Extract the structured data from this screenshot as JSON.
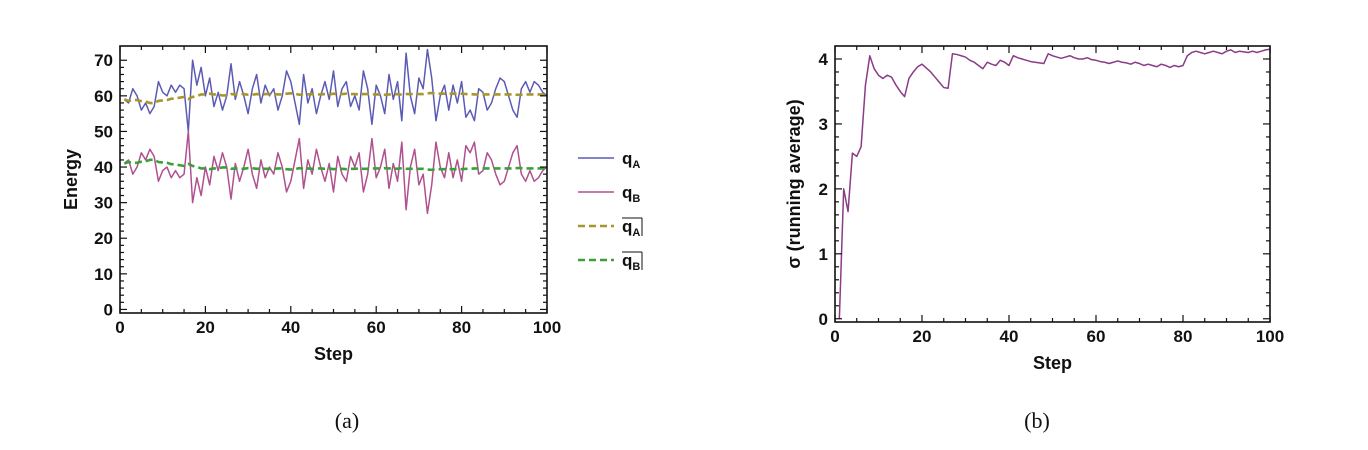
{
  "captions": [
    "(a)",
    "(b)"
  ],
  "chart_data": [
    {
      "type": "line",
      "title": "",
      "xlabel": "Step",
      "ylabel": "Energy",
      "xlim": [
        0,
        100
      ],
      "ylim": [
        -1,
        74
      ],
      "xticks": [
        "0",
        "20",
        "40",
        "60",
        "80",
        "100"
      ],
      "yticks": [
        "0",
        "10",
        "20",
        "30",
        "40",
        "50",
        "60",
        "70"
      ],
      "x": [
        1,
        2,
        3,
        4,
        5,
        6,
        7,
        8,
        9,
        10,
        11,
        12,
        13,
        14,
        15,
        16,
        17,
        18,
        19,
        20,
        21,
        22,
        23,
        24,
        25,
        26,
        27,
        28,
        29,
        30,
        31,
        32,
        33,
        34,
        35,
        36,
        37,
        38,
        39,
        40,
        41,
        42,
        43,
        44,
        45,
        46,
        47,
        48,
        49,
        50,
        51,
        52,
        53,
        54,
        55,
        56,
        57,
        58,
        59,
        60,
        61,
        62,
        63,
        64,
        65,
        66,
        67,
        68,
        69,
        70,
        71,
        72,
        73,
        74,
        75,
        76,
        77,
        78,
        79,
        80,
        81,
        82,
        83,
        84,
        85,
        86,
        87,
        88,
        89,
        90,
        91,
        92,
        93,
        94,
        95,
        96,
        97,
        98,
        99,
        100
      ],
      "legend_position": "right-outside",
      "series": [
        {
          "name": "q",
          "sub": "A",
          "overline": false,
          "style": "solid",
          "color": "#5b5bb5",
          "values": [
            59,
            58,
            62,
            60,
            56,
            58,
            55,
            57,
            64,
            61,
            60,
            63,
            61,
            63,
            62,
            50,
            70,
            63,
            68,
            60,
            65,
            57,
            61,
            56,
            60,
            69,
            59,
            64,
            60,
            55,
            62,
            66,
            58,
            63,
            60,
            62,
            56,
            60,
            67,
            64,
            58,
            52,
            66,
            58,
            62,
            55,
            60,
            64,
            59,
            67,
            57,
            62,
            64,
            57,
            60,
            56,
            67,
            62,
            52,
            63,
            60,
            55,
            66,
            59,
            64,
            53,
            72,
            60,
            55,
            65,
            62,
            73,
            65,
            53,
            60,
            63,
            56,
            63,
            58,
            64,
            54,
            56,
            53,
            62,
            61,
            56,
            58,
            62,
            65,
            64,
            60,
            56,
            54,
            62,
            64,
            61,
            64,
            63,
            61,
            60
          ]
        },
        {
          "name": "q",
          "sub": "B",
          "overline": false,
          "style": "solid",
          "color": "#b0508e",
          "values": [
            41,
            42,
            38,
            40,
            44,
            42,
            45,
            43,
            36,
            39,
            40,
            37,
            39,
            37,
            38,
            50,
            30,
            37,
            32,
            40,
            35,
            43,
            39,
            44,
            40,
            31,
            41,
            36,
            40,
            45,
            38,
            34,
            42,
            37,
            40,
            38,
            44,
            40,
            33,
            36,
            42,
            48,
            34,
            42,
            38,
            45,
            40,
            36,
            41,
            33,
            43,
            38,
            36,
            43,
            40,
            44,
            33,
            38,
            48,
            37,
            40,
            45,
            34,
            41,
            36,
            47,
            28,
            40,
            45,
            35,
            38,
            27,
            35,
            47,
            40,
            37,
            44,
            37,
            42,
            36,
            46,
            44,
            47,
            38,
            39,
            44,
            42,
            38,
            35,
            36,
            40,
            44,
            46,
            38,
            36,
            39,
            36,
            37,
            39,
            40
          ]
        },
        {
          "name": "q",
          "sub": "A",
          "overline": true,
          "style": "dashed",
          "color": "#a8962a",
          "values": [
            59,
            58.6,
            58.8,
            58.8,
            58.5,
            58.4,
            58.0,
            57.9,
            58.6,
            58.7,
            58.8,
            59.2,
            59.2,
            59.5,
            59.7,
            59.1,
            59.7,
            59.9,
            60.4,
            60.4,
            60.6,
            60.4,
            60.4,
            60.1,
            60.1,
            60.5,
            60.4,
            60.5,
            60.5,
            60.3,
            60.3,
            60.5,
            60.4,
            60.5,
            60.5,
            60.5,
            60.4,
            60.4,
            60.6,
            60.7,
            60.6,
            60.3,
            60.5,
            60.4,
            60.5,
            60.4,
            60.4,
            60.5,
            60.4,
            60.6,
            60.5,
            60.5,
            60.6,
            60.5,
            60.5,
            60.4,
            60.5,
            60.5,
            60.4,
            60.4,
            60.4,
            60.3,
            60.4,
            60.4,
            60.5,
            60.3,
            60.5,
            60.5,
            60.5,
            60.5,
            60.5,
            60.7,
            60.8,
            60.6,
            60.6,
            60.6,
            60.6,
            60.6,
            60.6,
            60.6,
            60.5,
            60.5,
            60.4,
            60.4,
            60.4,
            60.4,
            60.4,
            60.4,
            60.4,
            60.4,
            60.4,
            60.4,
            60.3,
            60.3,
            60.4,
            60.4,
            60.4,
            60.4,
            60.4,
            60.4
          ]
        },
        {
          "name": "q",
          "sub": "B",
          "overline": true,
          "style": "dashed",
          "color": "#3aa03a",
          "values": [
            41,
            41.4,
            41.2,
            41.2,
            41.5,
            41.6,
            42.0,
            42.1,
            41.4,
            41.3,
            41.2,
            40.8,
            40.8,
            40.5,
            40.3,
            40.9,
            40.3,
            40.1,
            39.6,
            39.6,
            39.4,
            39.6,
            39.6,
            39.9,
            39.9,
            39.5,
            39.6,
            39.5,
            39.5,
            39.7,
            39.7,
            39.5,
            39.6,
            39.5,
            39.5,
            39.5,
            39.6,
            39.6,
            39.4,
            39.3,
            39.4,
            39.7,
            39.5,
            39.6,
            39.5,
            39.6,
            39.6,
            39.5,
            39.6,
            39.4,
            39.5,
            39.5,
            39.4,
            39.5,
            39.5,
            39.6,
            39.5,
            39.5,
            39.6,
            39.6,
            39.6,
            39.7,
            39.6,
            39.6,
            39.5,
            39.7,
            39.5,
            39.5,
            39.5,
            39.5,
            39.5,
            39.3,
            39.2,
            39.4,
            39.4,
            39.4,
            39.4,
            39.4,
            39.4,
            39.4,
            39.5,
            39.5,
            39.6,
            39.6,
            39.6,
            39.6,
            39.6,
            39.6,
            39.6,
            39.6,
            39.6,
            39.6,
            39.7,
            39.7,
            39.6,
            39.6,
            39.6,
            39.6,
            39.6,
            39.6
          ]
        }
      ]
    },
    {
      "type": "line",
      "title": "",
      "xlabel": "Step",
      "ylabel": "σ (running average)",
      "xlim": [
        0,
        100
      ],
      "ylim": [
        -0.05,
        4.2
      ],
      "xticks": [
        "0",
        "20",
        "40",
        "60",
        "80",
        "100"
      ],
      "yticks": [
        "0",
        "1",
        "2",
        "3",
        "4"
      ],
      "series": [
        {
          "name": "",
          "style": "solid",
          "color": "#8a3c86",
          "x": [
            1,
            2,
            3,
            4,
            5,
            6,
            7,
            8,
            9,
            10,
            11,
            12,
            13,
            14,
            15,
            16,
            17,
            18,
            19,
            20,
            21,
            22,
            23,
            24,
            25,
            26,
            27,
            28,
            29,
            30,
            31,
            32,
            33,
            34,
            35,
            36,
            37,
            38,
            39,
            40,
            41,
            42,
            43,
            44,
            45,
            46,
            47,
            48,
            49,
            50,
            51,
            52,
            53,
            54,
            55,
            56,
            57,
            58,
            59,
            60,
            61,
            62,
            63,
            64,
            65,
            66,
            67,
            68,
            69,
            70,
            71,
            72,
            73,
            74,
            75,
            76,
            77,
            78,
            79,
            80,
            81,
            82,
            83,
            84,
            85,
            86,
            87,
            88,
            89,
            90,
            91,
            92,
            93,
            94,
            95,
            96,
            97,
            98,
            99,
            100
          ],
          "values": [
            0,
            2.0,
            1.65,
            2.55,
            2.5,
            2.65,
            3.6,
            4.05,
            3.85,
            3.75,
            3.7,
            3.75,
            3.72,
            3.6,
            3.5,
            3.42,
            3.7,
            3.8,
            3.88,
            3.92,
            3.86,
            3.8,
            3.72,
            3.64,
            3.56,
            3.55,
            4.08,
            4.07,
            4.05,
            4.03,
            3.98,
            3.95,
            3.9,
            3.85,
            3.95,
            3.92,
            3.9,
            3.98,
            3.95,
            3.9,
            4.05,
            4.02,
            4.0,
            3.98,
            3.96,
            3.95,
            3.94,
            3.93,
            4.08,
            4.05,
            4.03,
            4.01,
            4.03,
            4.05,
            4.02,
            4.0,
            4.0,
            4.02,
            3.99,
            3.98,
            3.96,
            3.95,
            3.93,
            3.95,
            3.97,
            3.95,
            3.94,
            3.92,
            3.95,
            3.93,
            3.9,
            3.92,
            3.9,
            3.88,
            3.92,
            3.9,
            3.87,
            3.9,
            3.88,
            3.9,
            4.05,
            4.1,
            4.12,
            4.1,
            4.08,
            4.1,
            4.12,
            4.1,
            4.08,
            4.12,
            4.14,
            4.1,
            4.12,
            4.11,
            4.1,
            4.12,
            4.1,
            4.12,
            4.14,
            4.15
          ]
        }
      ]
    }
  ]
}
